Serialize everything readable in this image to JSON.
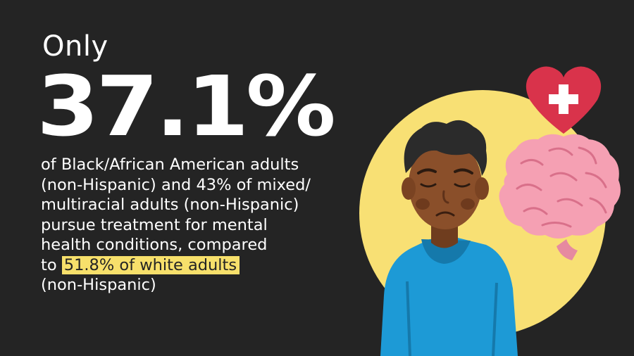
{
  "headline": {
    "prefix": "Only",
    "stat": "37.1%"
  },
  "body": {
    "lines": [
      "of Black/African American adults",
      "(non-Hispanic) and 43% of mixed/",
      "multiracial adults (non-Hispanic)",
      "pursue treatment for mental",
      "health conditions, compared"
    ],
    "line6_prefix": "to ",
    "highlight": "51.8% of white adults",
    "line7": "(non-Hispanic)"
  },
  "colors": {
    "background": "#242424",
    "text": "#ffffff",
    "highlight": "#f7e06b",
    "circle": "#f8e074",
    "heart": "#d9334b",
    "brain": "#f5a0b3",
    "hoodie": "#1d9ad6",
    "skin": "#8a4f2a"
  },
  "icons": {
    "heart": "heart-plus-icon",
    "brain": "brain-icon",
    "person": "sad-person-illustration"
  }
}
